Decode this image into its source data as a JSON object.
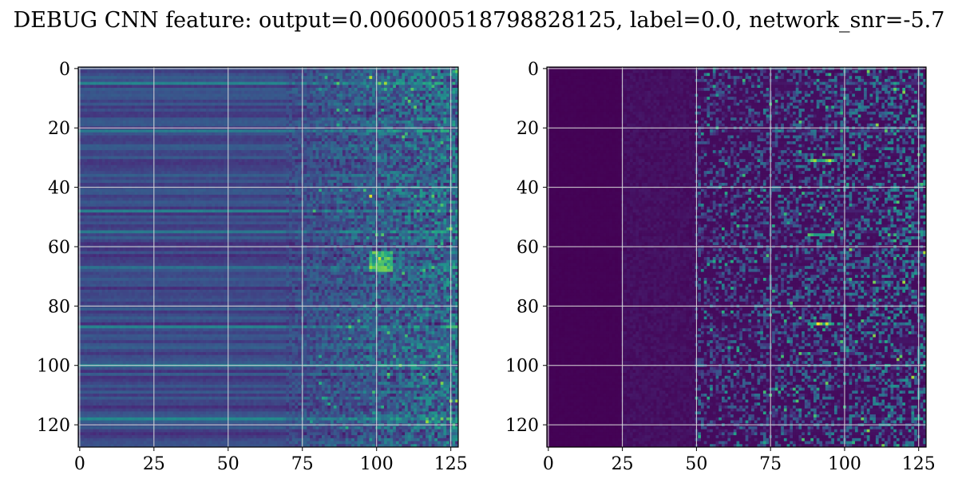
{
  "figure": {
    "title": "DEBUG CNN feature: output=0.006000518798828125, label=0.0, network_snr=-5.7"
  },
  "colors": {
    "background": "#ffffff",
    "grid": "#d9d9d9",
    "axes": "#000000",
    "colormap": "viridis"
  },
  "chart_data": [
    {
      "type": "heatmap",
      "name": "left-heatmap",
      "rows": 128,
      "cols": 128,
      "colormap": "viridis",
      "xlim": [
        -0.5,
        127.5
      ],
      "ylim": [
        127.5,
        -0.5
      ],
      "x_ticks": [
        0,
        25,
        50,
        75,
        100,
        125
      ],
      "y_ticks": [
        0,
        20,
        40,
        60,
        80,
        100,
        120
      ],
      "grid": true,
      "description_values": "values low-moderate on columns 0-70, noisier and brighter for columns 75-127, bright spots near (x=103,y=63),(x=98,y=43),(x=98,y=3)"
    },
    {
      "type": "heatmap",
      "name": "right-heatmap",
      "rows": 128,
      "cols": 128,
      "colormap": "viridis",
      "xlim": [
        -0.5,
        127.5
      ],
      "ylim": [
        127.5,
        -0.5
      ],
      "x_ticks": [
        0,
        25,
        50,
        75,
        100,
        125
      ],
      "y_ticks": [
        0,
        20,
        40,
        60,
        80,
        100,
        120
      ],
      "grid": true,
      "description_values": "near zero for columns 0-25, faint 25-50, increasingly bright noisy streaks for columns 50-127, brightest near x=90-95"
    }
  ]
}
